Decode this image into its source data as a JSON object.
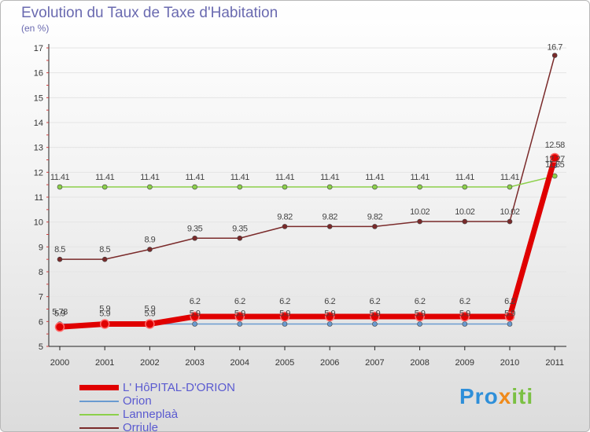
{
  "header": {
    "title": "Evolution du Taux de Taxe d'Habitation",
    "unit": "(en %)"
  },
  "chart_data": {
    "type": "line",
    "title": "Evolution du Taux de Taxe d'Habitation",
    "ylabel": "(en %)",
    "xlabel": "",
    "ylim": [
      5,
      17
    ],
    "yticks": [
      5,
      6,
      7,
      8,
      9,
      10,
      11,
      12,
      13,
      14,
      15,
      16,
      17
    ],
    "categories": [
      "2000",
      "2001",
      "2002",
      "2003",
      "2004",
      "2005",
      "2006",
      "2007",
      "2008",
      "2009",
      "2010",
      "2011"
    ],
    "series": [
      {
        "name": "L' HôPITAL-D'ORION",
        "color": "#e00000",
        "values": [
          5.78,
          5.9,
          5.9,
          6.2,
          6.2,
          6.2,
          6.2,
          6.2,
          6.2,
          6.2,
          6.2,
          12.58
        ],
        "labels": [
          "5.78",
          "5.9",
          "5.9",
          "6.2",
          "6.2",
          "6.2",
          "6.2",
          "6.2",
          "6.2",
          "6.2",
          "6.2",
          "12.58"
        ]
      },
      {
        "name": "Orion",
        "color": "#6a9bd0",
        "values": [
          5.9,
          5.9,
          5.9,
          5.9,
          5.9,
          5.9,
          5.9,
          5.9,
          5.9,
          5.9,
          5.9,
          12.27
        ],
        "labels": [
          "5.9",
          "5.9",
          "5.9",
          "5.9",
          "5.9",
          "5.9",
          "5.9",
          "5.9",
          "5.9",
          "5.9",
          "5.9",
          "12.27"
        ]
      },
      {
        "name": "Lanneplaà",
        "color": "#8cd04a",
        "values": [
          11.41,
          11.41,
          11.41,
          11.41,
          11.41,
          11.41,
          11.41,
          11.41,
          11.41,
          11.41,
          11.41,
          11.85
        ],
        "labels": [
          "11.41",
          "11.41",
          "11.41",
          "11.41",
          "11.41",
          "11.41",
          "11.41",
          "11.41",
          "11.41",
          "11.41",
          "11.41",
          "11.85"
        ]
      },
      {
        "name": "Orriule",
        "color": "#7a2a2a",
        "values": [
          8.5,
          8.5,
          8.9,
          9.35,
          9.35,
          9.82,
          9.82,
          9.82,
          10.02,
          10.02,
          10.02,
          16.7
        ],
        "labels": [
          "8.5",
          "8.5",
          "8.9",
          "9.35",
          "9.35",
          "9.82",
          "9.82",
          "9.82",
          "10.02",
          "10.02",
          "10.02",
          "16.7"
        ]
      }
    ]
  },
  "legend": {
    "items": [
      {
        "label": "L' HôPITAL-D'ORION",
        "color": "#e00000"
      },
      {
        "label": "Orion",
        "color": "#6a9bd0"
      },
      {
        "label": "Lanneplaà",
        "color": "#8cd04a"
      },
      {
        "label": "Orriule",
        "color": "#7a2a2a"
      }
    ]
  },
  "branding": {
    "logo_part1": "Pro",
    "logo_part2": "x",
    "logo_part3": "iti"
  }
}
